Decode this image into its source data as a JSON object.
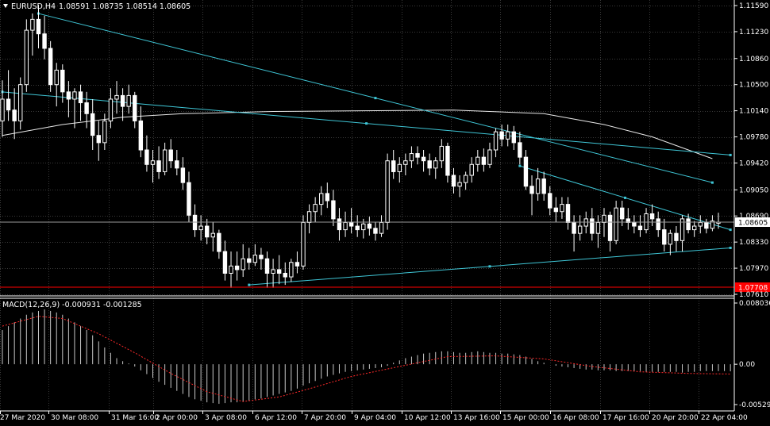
{
  "window": {
    "symbol_label": "EURUSD,H4",
    "ohlc_label": "1.08591 1.08735 1.08514 1.08605"
  },
  "colors": {
    "background": "#000000",
    "grid": "#3a3a3a",
    "axis": "#ffffff",
    "candle": "#ffffff",
    "trendline": "#3fc6d6",
    "moving_average": "#e8e8e8",
    "bid_line": "#9a9a9a",
    "support_line": "#ff0000",
    "support_label_bg": "#ff0000",
    "macd_histogram": "#c8c8c8",
    "macd_signal": "#ff2a2a"
  },
  "price_axis": {
    "ticks": [
      "1.11590",
      "1.11230",
      "1.10860",
      "1.10500",
      "1.10140",
      "1.09780",
      "1.09420",
      "1.09050",
      "1.08690",
      "1.08330",
      "1.07970",
      "1.07610"
    ],
    "current_price_label": "1.08605",
    "support_label": "1.07708"
  },
  "time_axis": {
    "ticks": [
      "27 Mar 2020",
      "30 Mar 08:00",
      "31 Mar 16:00",
      "2 Apr 00:00",
      "3 Apr 08:00",
      "6 Apr 12:00",
      "7 Apr 20:00",
      "9 Apr 04:00",
      "10 Apr 12:00",
      "13 Apr 16:00",
      "15 Apr 00:00",
      "16 Apr 08:00",
      "17 Apr 16:00",
      "20 Apr 20:00",
      "22 Apr 04:00"
    ]
  },
  "macd": {
    "label": "MACD(12,26,9) -0.000931 -0.001285",
    "ticks": [
      "0.008036",
      "0.00",
      "-0.005298"
    ],
    "range": [
      -0.005298,
      0.008036
    ]
  },
  "chart_data": {
    "type": "candlestick",
    "symbol": "EURUSD",
    "timeframe": "H4",
    "ylim": [
      1.0742,
      1.1176
    ],
    "current_price": 1.08605,
    "support_level": 1.07708,
    "candles": [
      {
        "o": 1.1,
        "h": 1.1056,
        "l": 1.0978,
        "c": 1.103
      },
      {
        "o": 1.103,
        "h": 1.107,
        "l": 1.1,
        "c": 1.1015
      },
      {
        "o": 1.1015,
        "h": 1.1045,
        "l": 1.0975,
        "c": 1.1
      },
      {
        "o": 1.1,
        "h": 1.106,
        "l": 1.0988,
        "c": 1.105
      },
      {
        "o": 1.105,
        "h": 1.114,
        "l": 1.104,
        "c": 1.1125
      },
      {
        "o": 1.1125,
        "h": 1.1148,
        "l": 1.109,
        "c": 1.114
      },
      {
        "o": 1.114,
        "h": 1.116,
        "l": 1.11,
        "c": 1.112
      },
      {
        "o": 1.112,
        "h": 1.1145,
        "l": 1.1085,
        "c": 1.11
      },
      {
        "o": 1.11,
        "h": 1.111,
        "l": 1.104,
        "c": 1.105
      },
      {
        "o": 1.105,
        "h": 1.108,
        "l": 1.102,
        "c": 1.107
      },
      {
        "o": 1.107,
        "h": 1.1078,
        "l": 1.1025,
        "c": 1.104
      },
      {
        "o": 1.104,
        "h": 1.1055,
        "l": 1.1005,
        "c": 1.103
      },
      {
        "o": 1.103,
        "h": 1.1045,
        "l": 1.099,
        "c": 1.104
      },
      {
        "o": 1.104,
        "h": 1.105,
        "l": 1.1,
        "c": 1.1025
      },
      {
        "o": 1.1025,
        "h": 1.104,
        "l": 1.099,
        "c": 1.101
      },
      {
        "o": 1.101,
        "h": 1.103,
        "l": 1.096,
        "c": 1.098
      },
      {
        "o": 1.098,
        "h": 1.1,
        "l": 1.0945,
        "c": 1.097
      },
      {
        "o": 1.097,
        "h": 1.101,
        "l": 1.096,
        "c": 1.1
      },
      {
        "o": 1.1,
        "h": 1.1045,
        "l": 1.099,
        "c": 1.103
      },
      {
        "o": 1.103,
        "h": 1.1055,
        "l": 1.101,
        "c": 1.1035
      },
      {
        "o": 1.1035,
        "h": 1.1045,
        "l": 1.1,
        "c": 1.102
      },
      {
        "o": 1.102,
        "h": 1.105,
        "l": 1.101,
        "c": 1.1035
      },
      {
        "o": 1.1035,
        "h": 1.104,
        "l": 1.099,
        "c": 1.1
      },
      {
        "o": 1.1,
        "h": 1.102,
        "l": 1.095,
        "c": 1.096
      },
      {
        "o": 1.096,
        "h": 1.098,
        "l": 1.093,
        "c": 1.094
      },
      {
        "o": 1.094,
        "h": 1.096,
        "l": 1.0915,
        "c": 1.0945
      },
      {
        "o": 1.0945,
        "h": 1.0965,
        "l": 1.092,
        "c": 1.093
      },
      {
        "o": 1.093,
        "h": 1.097,
        "l": 1.0925,
        "c": 1.096
      },
      {
        "o": 1.096,
        "h": 1.0975,
        "l": 1.0935,
        "c": 1.0945
      },
      {
        "o": 1.0945,
        "h": 1.096,
        "l": 1.0925,
        "c": 1.0935
      },
      {
        "o": 1.0935,
        "h": 1.095,
        "l": 1.0905,
        "c": 1.0915
      },
      {
        "o": 1.0915,
        "h": 1.093,
        "l": 1.086,
        "c": 1.087
      },
      {
        "o": 1.087,
        "h": 1.0885,
        "l": 1.084,
        "c": 1.085
      },
      {
        "o": 1.085,
        "h": 1.087,
        "l": 1.0835,
        "c": 1.0855
      },
      {
        "o": 1.0855,
        "h": 1.0865,
        "l": 1.083,
        "c": 1.084
      },
      {
        "o": 1.084,
        "h": 1.086,
        "l": 1.082,
        "c": 1.0845
      },
      {
        "o": 1.0845,
        "h": 1.085,
        "l": 1.081,
        "c": 1.082
      },
      {
        "o": 1.082,
        "h": 1.0835,
        "l": 1.078,
        "c": 1.079
      },
      {
        "o": 1.079,
        "h": 1.082,
        "l": 1.077,
        "c": 1.08
      },
      {
        "o": 1.08,
        "h": 1.082,
        "l": 1.078,
        "c": 1.0795
      },
      {
        "o": 1.0795,
        "h": 1.083,
        "l": 1.0785,
        "c": 1.081
      },
      {
        "o": 1.081,
        "h": 1.0825,
        "l": 1.0795,
        "c": 1.0805
      },
      {
        "o": 1.0805,
        "h": 1.083,
        "l": 1.08,
        "c": 1.0815
      },
      {
        "o": 1.0815,
        "h": 1.0825,
        "l": 1.0795,
        "c": 1.081
      },
      {
        "o": 1.081,
        "h": 1.082,
        "l": 1.077,
        "c": 1.079
      },
      {
        "o": 1.079,
        "h": 1.081,
        "l": 1.077,
        "c": 1.0795
      },
      {
        "o": 1.0795,
        "h": 1.0815,
        "l": 1.0775,
        "c": 1.079
      },
      {
        "o": 1.079,
        "h": 1.0805,
        "l": 1.0774,
        "c": 1.0785
      },
      {
        "o": 1.0785,
        "h": 1.081,
        "l": 1.0778,
        "c": 1.0805
      },
      {
        "o": 1.0805,
        "h": 1.082,
        "l": 1.079,
        "c": 1.08
      },
      {
        "o": 1.08,
        "h": 1.087,
        "l": 1.0795,
        "c": 1.086
      },
      {
        "o": 1.086,
        "h": 1.0885,
        "l": 1.0845,
        "c": 1.0875
      },
      {
        "o": 1.0875,
        "h": 1.0895,
        "l": 1.086,
        "c": 1.0885
      },
      {
        "o": 1.0885,
        "h": 1.091,
        "l": 1.087,
        "c": 1.09
      },
      {
        "o": 1.09,
        "h": 1.0915,
        "l": 1.088,
        "c": 1.089
      },
      {
        "o": 1.089,
        "h": 1.0905,
        "l": 1.0855,
        "c": 1.0865
      },
      {
        "o": 1.0865,
        "h": 1.088,
        "l": 1.0835,
        "c": 1.085
      },
      {
        "o": 1.085,
        "h": 1.0875,
        "l": 1.084,
        "c": 1.086
      },
      {
        "o": 1.086,
        "h": 1.088,
        "l": 1.0845,
        "c": 1.0855
      },
      {
        "o": 1.0855,
        "h": 1.087,
        "l": 1.084,
        "c": 1.085
      },
      {
        "o": 1.085,
        "h": 1.0865,
        "l": 1.0838,
        "c": 1.0858
      },
      {
        "o": 1.0858,
        "h": 1.0868,
        "l": 1.0842,
        "c": 1.0852
      },
      {
        "o": 1.0852,
        "h": 1.086,
        "l": 1.0835,
        "c": 1.0845
      },
      {
        "o": 1.0845,
        "h": 1.087,
        "l": 1.084,
        "c": 1.086
      },
      {
        "o": 1.086,
        "h": 1.0955,
        "l": 1.085,
        "c": 1.0945
      },
      {
        "o": 1.0945,
        "h": 1.096,
        "l": 1.092,
        "c": 1.093
      },
      {
        "o": 1.093,
        "h": 1.095,
        "l": 1.0915,
        "c": 1.094
      },
      {
        "o": 1.094,
        "h": 1.0955,
        "l": 1.0925,
        "c": 1.0945
      },
      {
        "o": 1.0945,
        "h": 1.0965,
        "l": 1.0935,
        "c": 1.0955
      },
      {
        "o": 1.0955,
        "h": 1.0965,
        "l": 1.094,
        "c": 1.095
      },
      {
        "o": 1.095,
        "h": 1.096,
        "l": 1.093,
        "c": 1.0945
      },
      {
        "o": 1.0945,
        "h": 1.0955,
        "l": 1.0925,
        "c": 1.0935
      },
      {
        "o": 1.0935,
        "h": 1.095,
        "l": 1.092,
        "c": 1.0945
      },
      {
        "o": 1.0945,
        "h": 1.0975,
        "l": 1.0935,
        "c": 1.0965
      },
      {
        "o": 1.0965,
        "h": 1.097,
        "l": 1.0915,
        "c": 1.0925
      },
      {
        "o": 1.0925,
        "h": 1.0935,
        "l": 1.09,
        "c": 1.091
      },
      {
        "o": 1.091,
        "h": 1.0925,
        "l": 1.0895,
        "c": 1.0915
      },
      {
        "o": 1.0915,
        "h": 1.093,
        "l": 1.0905,
        "c": 1.0925
      },
      {
        "o": 1.0925,
        "h": 1.095,
        "l": 1.0915,
        "c": 1.094
      },
      {
        "o": 1.094,
        "h": 1.096,
        "l": 1.093,
        "c": 1.095
      },
      {
        "o": 1.095,
        "h": 1.0962,
        "l": 1.093,
        "c": 1.094
      },
      {
        "o": 1.094,
        "h": 1.097,
        "l": 1.0935,
        "c": 1.096
      },
      {
        "o": 1.096,
        "h": 1.099,
        "l": 1.095,
        "c": 1.0985
      },
      {
        "o": 1.0985,
        "h": 1.0995,
        "l": 1.0965,
        "c": 1.0975
      },
      {
        "o": 1.0975,
        "h": 1.0995,
        "l": 1.0965,
        "c": 1.0985
      },
      {
        "o": 1.0985,
        "h": 1.0993,
        "l": 1.096,
        "c": 1.097
      },
      {
        "o": 1.097,
        "h": 1.0985,
        "l": 1.094,
        "c": 1.095
      },
      {
        "o": 1.095,
        "h": 1.096,
        "l": 1.0905,
        "c": 1.091
      },
      {
        "o": 1.091,
        "h": 1.0925,
        "l": 1.087,
        "c": 1.09
      },
      {
        "o": 1.09,
        "h": 1.0935,
        "l": 1.089,
        "c": 1.092
      },
      {
        "o": 1.092,
        "h": 1.093,
        "l": 1.089,
        "c": 1.09
      },
      {
        "o": 1.09,
        "h": 1.091,
        "l": 1.087,
        "c": 1.088
      },
      {
        "o": 1.088,
        "h": 1.0895,
        "l": 1.086,
        "c": 1.0875
      },
      {
        "o": 1.0875,
        "h": 1.0895,
        "l": 1.0865,
        "c": 1.0885
      },
      {
        "o": 1.0885,
        "h": 1.0895,
        "l": 1.085,
        "c": 1.086
      },
      {
        "o": 1.086,
        "h": 1.087,
        "l": 1.082,
        "c": 1.0845
      },
      {
        "o": 1.0845,
        "h": 1.087,
        "l": 1.0835,
        "c": 1.0855
      },
      {
        "o": 1.0855,
        "h": 1.0875,
        "l": 1.0845,
        "c": 1.0865
      },
      {
        "o": 1.0865,
        "h": 1.088,
        "l": 1.0835,
        "c": 1.0845
      },
      {
        "o": 1.0845,
        "h": 1.087,
        "l": 1.0825,
        "c": 1.086
      },
      {
        "o": 1.086,
        "h": 1.088,
        "l": 1.084,
        "c": 1.087
      },
      {
        "o": 1.087,
        "h": 1.0875,
        "l": 1.082,
        "c": 1.0835
      },
      {
        "o": 1.0835,
        "h": 1.089,
        "l": 1.083,
        "c": 1.088
      },
      {
        "o": 1.088,
        "h": 1.089,
        "l": 1.0855,
        "c": 1.0865
      },
      {
        "o": 1.0865,
        "h": 1.088,
        "l": 1.085,
        "c": 1.086
      },
      {
        "o": 1.086,
        "h": 1.087,
        "l": 1.0845,
        "c": 1.0855
      },
      {
        "o": 1.0855,
        "h": 1.087,
        "l": 1.084,
        "c": 1.085
      },
      {
        "o": 1.085,
        "h": 1.088,
        "l": 1.0845,
        "c": 1.0872
      },
      {
        "o": 1.0872,
        "h": 1.0885,
        "l": 1.0855,
        "c": 1.0865
      },
      {
        "o": 1.0865,
        "h": 1.0875,
        "l": 1.084,
        "c": 1.085
      },
      {
        "o": 1.085,
        "h": 1.0865,
        "l": 1.082,
        "c": 1.083
      },
      {
        "o": 1.083,
        "h": 1.085,
        "l": 1.0815,
        "c": 1.0845
      },
      {
        "o": 1.0845,
        "h": 1.0855,
        "l": 1.082,
        "c": 1.0835
      },
      {
        "o": 1.0835,
        "h": 1.087,
        "l": 1.082,
        "c": 1.0865
      },
      {
        "o": 1.0865,
        "h": 1.0872,
        "l": 1.0845,
        "c": 1.085
      },
      {
        "o": 1.085,
        "h": 1.0862,
        "l": 1.084,
        "c": 1.0855
      },
      {
        "o": 1.0855,
        "h": 1.087,
        "l": 1.0845,
        "c": 1.086
      },
      {
        "o": 1.086,
        "h": 1.0865,
        "l": 1.0845,
        "c": 1.0852
      },
      {
        "o": 1.0852,
        "h": 1.087,
        "l": 1.0848,
        "c": 1.0862
      },
      {
        "o": 1.0859,
        "h": 1.08735,
        "l": 1.08514,
        "c": 1.08605
      }
    ],
    "moving_average": [
      {
        "i": 0,
        "v": 1.098
      },
      {
        "i": 10,
        "v": 1.0995
      },
      {
        "i": 20,
        "v": 1.1005
      },
      {
        "i": 30,
        "v": 1.101
      },
      {
        "i": 45,
        "v": 1.1013
      },
      {
        "i": 60,
        "v": 1.1014
      },
      {
        "i": 75,
        "v": 1.1015
      },
      {
        "i": 90,
        "v": 1.101
      },
      {
        "i": 100,
        "v": 1.0995
      },
      {
        "i": 108,
        "v": 1.0978
      },
      {
        "i": 114,
        "v": 1.096
      },
      {
        "i": 118,
        "v": 1.0948
      }
    ],
    "trendlines": [
      {
        "name": "resistance-upper",
        "from": {
          "i": 6,
          "p": 1.1148
        },
        "to": {
          "i": 118,
          "p": 1.0915
        }
      },
      {
        "name": "mid-descending",
        "from": {
          "i": 0,
          "p": 1.104
        },
        "to": {
          "i": 121,
          "p": 1.0953
        }
      },
      {
        "name": "lower-descending",
        "from": {
          "i": 86,
          "p": 1.0938
        },
        "to": {
          "i": 121,
          "p": 1.085
        }
      },
      {
        "name": "rising-support",
        "from": {
          "i": 41,
          "p": 1.0774
        },
        "to": {
          "i": 121,
          "p": 1.0825
        }
      }
    ],
    "macd_histogram": [
      0.0045,
      0.005,
      0.0055,
      0.006,
      0.0065,
      0.0068,
      0.007,
      0.0072,
      0.007,
      0.0068,
      0.0065,
      0.006,
      0.0055,
      0.005,
      0.0045,
      0.0038,
      0.003,
      0.0022,
      0.0015,
      0.0008,
      0.0004,
      0.0001,
      -0.0003,
      -0.0008,
      -0.0013,
      -0.0018,
      -0.0023,
      -0.0027,
      -0.0031,
      -0.0035,
      -0.0039,
      -0.0043,
      -0.0046,
      -0.0048,
      -0.005,
      -0.0051,
      -0.0052,
      -0.0051,
      -0.005,
      -0.005,
      -0.0049,
      -0.0048,
      -0.0046,
      -0.0045,
      -0.0043,
      -0.0041,
      -0.0039,
      -0.0037,
      -0.0035,
      -0.0032,
      -0.0028,
      -0.0025,
      -0.0022,
      -0.0019,
      -0.0016,
      -0.0014,
      -0.0012,
      -0.001,
      -0.0009,
      -0.0008,
      -0.0007,
      -0.0006,
      -0.0005,
      -0.0004,
      -0.0002,
      0.0002,
      0.0005,
      0.0008,
      0.001,
      0.0012,
      0.0014,
      0.0015,
      0.0016,
      0.0017,
      0.0017,
      0.0016,
      0.0015,
      0.0015,
      0.0016,
      0.0017,
      0.0016,
      0.0015,
      0.0015,
      0.0014,
      0.0014,
      0.0013,
      0.0012,
      0.001,
      0.0007,
      0.0004,
      0.0002,
      0.0,
      -0.0002,
      -0.0003,
      -0.0004,
      -0.0005,
      -0.0006,
      -0.0007,
      -0.0007,
      -0.0008,
      -0.0008,
      -0.0008,
      -0.0009,
      -0.0009,
      -0.0009,
      -0.0009,
      -0.0009,
      -0.001,
      -0.001,
      -0.001,
      -0.001,
      -0.001,
      -0.001,
      -0.0011,
      -0.001,
      -0.001,
      -0.0009,
      -0.0009,
      -0.0009,
      -0.0009,
      -0.0009,
      -0.000931
    ],
    "macd_signal": [
      {
        "i": 0,
        "v": 0.005
      },
      {
        "i": 6,
        "v": 0.0063
      },
      {
        "i": 10,
        "v": 0.006
      },
      {
        "i": 16,
        "v": 0.004
      },
      {
        "i": 22,
        "v": 0.0015
      },
      {
        "i": 28,
        "v": -0.0012
      },
      {
        "i": 34,
        "v": -0.0036
      },
      {
        "i": 40,
        "v": -0.0049
      },
      {
        "i": 46,
        "v": -0.0043
      },
      {
        "i": 52,
        "v": -0.003
      },
      {
        "i": 58,
        "v": -0.0016
      },
      {
        "i": 66,
        "v": -0.0003
      },
      {
        "i": 74,
        "v": 0.001
      },
      {
        "i": 82,
        "v": 0.0011
      },
      {
        "i": 90,
        "v": 0.0007
      },
      {
        "i": 98,
        "v": -0.0003
      },
      {
        "i": 106,
        "v": -0.001
      },
      {
        "i": 114,
        "v": -0.0012
      },
      {
        "i": 121,
        "v": -0.001285
      }
    ]
  }
}
